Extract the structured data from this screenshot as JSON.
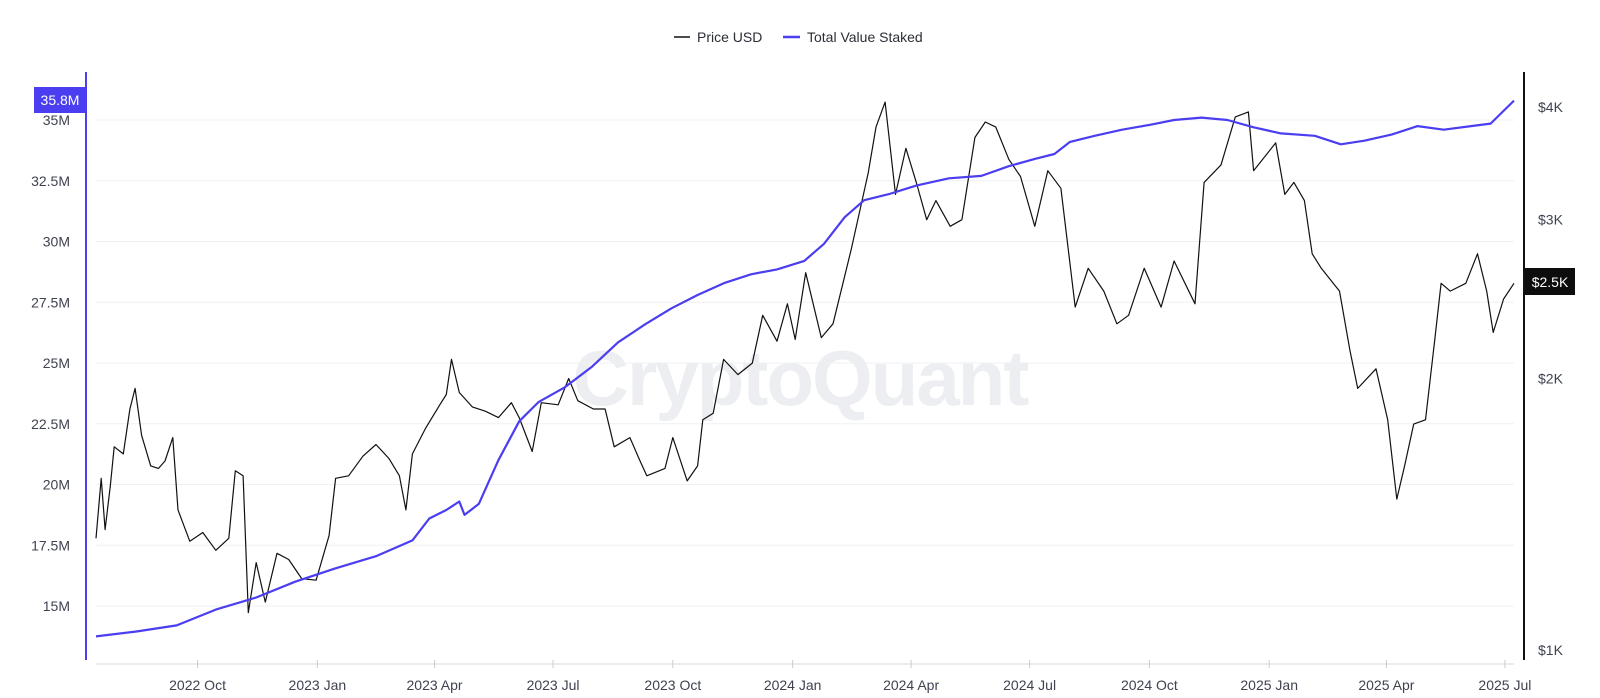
{
  "legend": {
    "price_label": "Price USD",
    "staked_label": "Total Value Staked"
  },
  "watermark": "CryptoQuant",
  "badges": {
    "left_value": "35.8M",
    "right_value": "$2.5K"
  },
  "colors": {
    "price": "#111111",
    "staked": "#4b3df0",
    "left_axis": "#4b3df0",
    "right_axis": "#111111",
    "grid": "#eef0f3",
    "right_badge_bg": "#0d0d0d"
  },
  "chart_data": {
    "type": "line",
    "title": "",
    "xlabel": "",
    "x_ticks": [
      "2022 Oct",
      "2023 Jan",
      "2023 Apr",
      "2023 Jul",
      "2023 Oct",
      "2024 Jan",
      "2024 Apr",
      "2024 Jul",
      "2024 Oct",
      "2025 Jan",
      "2025 Apr",
      "2025 Jul"
    ],
    "x_tick_dates": [
      "2022-10-01",
      "2023-01-01",
      "2023-04-01",
      "2023-07-01",
      "2023-10-01",
      "2024-01-01",
      "2024-04-01",
      "2024-07-01",
      "2024-10-01",
      "2025-01-01",
      "2025-04-01",
      "2025-07-01"
    ],
    "x_range": [
      "2022-07-15",
      "2025-07-08"
    ],
    "left_axis": {
      "ticks": [
        "15M",
        "17.5M",
        "20M",
        "22.5M",
        "25M",
        "27.5M",
        "30M",
        "32.5M",
        "35M"
      ],
      "tick_values": [
        15,
        17.5,
        20,
        22.5,
        25,
        27.5,
        30,
        32.5,
        35
      ],
      "unit": "M",
      "range": [
        13.2,
        36.6
      ]
    },
    "right_axis": {
      "ticks": [
        "$1K",
        "$2K",
        "$3K",
        "$4K"
      ],
      "tick_values": [
        1000,
        2000,
        3000,
        4000
      ],
      "scale": "log",
      "range": [
        1000,
        4250
      ]
    },
    "series": [
      {
        "name": "Price USD",
        "axis": "right",
        "points": [
          [
            "2022-07-15",
            1330
          ],
          [
            "2022-07-19",
            1550
          ],
          [
            "2022-07-22",
            1360
          ],
          [
            "2022-07-26",
            1520
          ],
          [
            "2022-07-29",
            1680
          ],
          [
            "2022-08-05",
            1650
          ],
          [
            "2022-08-10",
            1850
          ],
          [
            "2022-08-14",
            1950
          ],
          [
            "2022-08-19",
            1730
          ],
          [
            "2022-08-26",
            1600
          ],
          [
            "2022-09-01",
            1590
          ],
          [
            "2022-09-06",
            1620
          ],
          [
            "2022-09-12",
            1720
          ],
          [
            "2022-09-16",
            1430
          ],
          [
            "2022-09-25",
            1320
          ],
          [
            "2022-10-05",
            1350
          ],
          [
            "2022-10-15",
            1290
          ],
          [
            "2022-10-25",
            1330
          ],
          [
            "2022-10-30",
            1580
          ],
          [
            "2022-11-05",
            1560
          ],
          [
            "2022-11-09",
            1100
          ],
          [
            "2022-11-15",
            1250
          ],
          [
            "2022-11-22",
            1130
          ],
          [
            "2022-12-01",
            1280
          ],
          [
            "2022-12-10",
            1260
          ],
          [
            "2022-12-20",
            1200
          ],
          [
            "2022-12-31",
            1195
          ],
          [
            "2023-01-10",
            1340
          ],
          [
            "2023-01-15",
            1550
          ],
          [
            "2023-01-25",
            1560
          ],
          [
            "2023-02-05",
            1640
          ],
          [
            "2023-02-15",
            1690
          ],
          [
            "2023-02-25",
            1630
          ],
          [
            "2023-03-05",
            1560
          ],
          [
            "2023-03-10",
            1430
          ],
          [
            "2023-03-15",
            1650
          ],
          [
            "2023-03-25",
            1760
          ],
          [
            "2023-04-05",
            1870
          ],
          [
            "2023-04-10",
            1920
          ],
          [
            "2023-04-14",
            2100
          ],
          [
            "2023-04-20",
            1930
          ],
          [
            "2023-04-30",
            1860
          ],
          [
            "2023-05-10",
            1840
          ],
          [
            "2023-05-20",
            1810
          ],
          [
            "2023-05-30",
            1880
          ],
          [
            "2023-06-05",
            1810
          ],
          [
            "2023-06-15",
            1660
          ],
          [
            "2023-06-22",
            1880
          ],
          [
            "2023-07-05",
            1870
          ],
          [
            "2023-07-13",
            2000
          ],
          [
            "2023-07-20",
            1890
          ],
          [
            "2023-08-01",
            1850
          ],
          [
            "2023-08-10",
            1850
          ],
          [
            "2023-08-17",
            1680
          ],
          [
            "2023-08-29",
            1720
          ],
          [
            "2023-09-05",
            1630
          ],
          [
            "2023-09-11",
            1560
          ],
          [
            "2023-09-25",
            1590
          ],
          [
            "2023-10-01",
            1720
          ],
          [
            "2023-10-12",
            1540
          ],
          [
            "2023-10-20",
            1600
          ],
          [
            "2023-10-24",
            1800
          ],
          [
            "2023-11-01",
            1830
          ],
          [
            "2023-11-09",
            2100
          ],
          [
            "2023-11-20",
            2020
          ],
          [
            "2023-12-01",
            2080
          ],
          [
            "2023-12-09",
            2350
          ],
          [
            "2023-12-20",
            2200
          ],
          [
            "2023-12-28",
            2420
          ],
          [
            "2024-01-03",
            2210
          ],
          [
            "2024-01-11",
            2620
          ],
          [
            "2024-01-23",
            2220
          ],
          [
            "2024-02-01",
            2300
          ],
          [
            "2024-02-15",
            2780
          ],
          [
            "2024-02-28",
            3380
          ],
          [
            "2024-03-05",
            3800
          ],
          [
            "2024-03-12",
            4050
          ],
          [
            "2024-03-20",
            3200
          ],
          [
            "2024-03-28",
            3600
          ],
          [
            "2024-04-05",
            3300
          ],
          [
            "2024-04-13",
            3000
          ],
          [
            "2024-04-20",
            3150
          ],
          [
            "2024-05-01",
            2950
          ],
          [
            "2024-05-10",
            3000
          ],
          [
            "2024-05-20",
            3700
          ],
          [
            "2024-05-28",
            3850
          ],
          [
            "2024-06-05",
            3800
          ],
          [
            "2024-06-15",
            3500
          ],
          [
            "2024-06-24",
            3350
          ],
          [
            "2024-07-05",
            2950
          ],
          [
            "2024-07-15",
            3400
          ],
          [
            "2024-07-25",
            3250
          ],
          [
            "2024-08-05",
            2400
          ],
          [
            "2024-08-15",
            2650
          ],
          [
            "2024-08-27",
            2500
          ],
          [
            "2024-09-06",
            2300
          ],
          [
            "2024-09-15",
            2350
          ],
          [
            "2024-09-27",
            2650
          ],
          [
            "2024-10-10",
            2400
          ],
          [
            "2024-10-20",
            2700
          ],
          [
            "2024-11-05",
            2420
          ],
          [
            "2024-11-12",
            3300
          ],
          [
            "2024-11-25",
            3450
          ],
          [
            "2024-12-06",
            3900
          ],
          [
            "2024-12-16",
            3950
          ],
          [
            "2024-12-20",
            3400
          ],
          [
            "2025-01-06",
            3650
          ],
          [
            "2025-01-13",
            3200
          ],
          [
            "2025-01-20",
            3300
          ],
          [
            "2025-01-28",
            3150
          ],
          [
            "2025-02-03",
            2750
          ],
          [
            "2025-02-10",
            2650
          ],
          [
            "2025-02-24",
            2500
          ],
          [
            "2025-03-04",
            2150
          ],
          [
            "2025-03-10",
            1950
          ],
          [
            "2025-03-24",
            2050
          ],
          [
            "2025-04-02",
            1800
          ],
          [
            "2025-04-09",
            1470
          ],
          [
            "2025-04-15",
            1600
          ],
          [
            "2025-04-22",
            1780
          ],
          [
            "2025-05-01",
            1800
          ],
          [
            "2025-05-08",
            2200
          ],
          [
            "2025-05-13",
            2550
          ],
          [
            "2025-05-20",
            2500
          ],
          [
            "2025-06-01",
            2550
          ],
          [
            "2025-06-10",
            2750
          ],
          [
            "2025-06-17",
            2500
          ],
          [
            "2025-06-22",
            2250
          ],
          [
            "2025-06-30",
            2450
          ],
          [
            "2025-07-08",
            2550
          ]
        ]
      },
      {
        "name": "Total Value Staked",
        "axis": "left",
        "points": [
          [
            "2022-07-15",
            13.75
          ],
          [
            "2022-08-15",
            13.95
          ],
          [
            "2022-09-15",
            14.2
          ],
          [
            "2022-10-15",
            14.85
          ],
          [
            "2022-11-15",
            15.35
          ],
          [
            "2022-12-15",
            16.0
          ],
          [
            "2023-01-15",
            16.55
          ],
          [
            "2023-02-15",
            17.05
          ],
          [
            "2023-03-15",
            17.7
          ],
          [
            "2023-03-28",
            18.6
          ],
          [
            "2023-04-10",
            18.95
          ],
          [
            "2023-04-20",
            19.3
          ],
          [
            "2023-04-24",
            18.75
          ],
          [
            "2023-05-05",
            19.2
          ],
          [
            "2023-05-20",
            21.0
          ],
          [
            "2023-06-05",
            22.6
          ],
          [
            "2023-06-20",
            23.4
          ],
          [
            "2023-07-10",
            24.0
          ],
          [
            "2023-07-31",
            24.85
          ],
          [
            "2023-08-20",
            25.85
          ],
          [
            "2023-09-10",
            26.6
          ],
          [
            "2023-09-30",
            27.25
          ],
          [
            "2023-10-20",
            27.8
          ],
          [
            "2023-11-10",
            28.3
          ],
          [
            "2023-11-30",
            28.65
          ],
          [
            "2023-12-20",
            28.85
          ],
          [
            "2024-01-10",
            29.2
          ],
          [
            "2024-01-25",
            29.9
          ],
          [
            "2024-02-10",
            31.0
          ],
          [
            "2024-02-25",
            31.7
          ],
          [
            "2024-03-15",
            31.95
          ],
          [
            "2024-04-05",
            32.3
          ],
          [
            "2024-04-30",
            32.6
          ],
          [
            "2024-05-25",
            32.7
          ],
          [
            "2024-06-15",
            33.1
          ],
          [
            "2024-07-05",
            33.4
          ],
          [
            "2024-07-20",
            33.6
          ],
          [
            "2024-08-01",
            34.1
          ],
          [
            "2024-08-20",
            34.35
          ],
          [
            "2024-09-10",
            34.6
          ],
          [
            "2024-10-01",
            34.8
          ],
          [
            "2024-10-20",
            35.0
          ],
          [
            "2024-11-10",
            35.1
          ],
          [
            "2024-11-30",
            35.0
          ],
          [
            "2024-12-20",
            34.7
          ],
          [
            "2025-01-10",
            34.45
          ],
          [
            "2025-02-05",
            34.35
          ],
          [
            "2025-02-25",
            34.0
          ],
          [
            "2025-03-15",
            34.15
          ],
          [
            "2025-04-05",
            34.4
          ],
          [
            "2025-04-25",
            34.75
          ],
          [
            "2025-05-15",
            34.6
          ],
          [
            "2025-06-05",
            34.75
          ],
          [
            "2025-06-20",
            34.85
          ],
          [
            "2025-07-08",
            35.8
          ]
        ]
      }
    ],
    "grid": true,
    "legend_position": "top-center"
  }
}
